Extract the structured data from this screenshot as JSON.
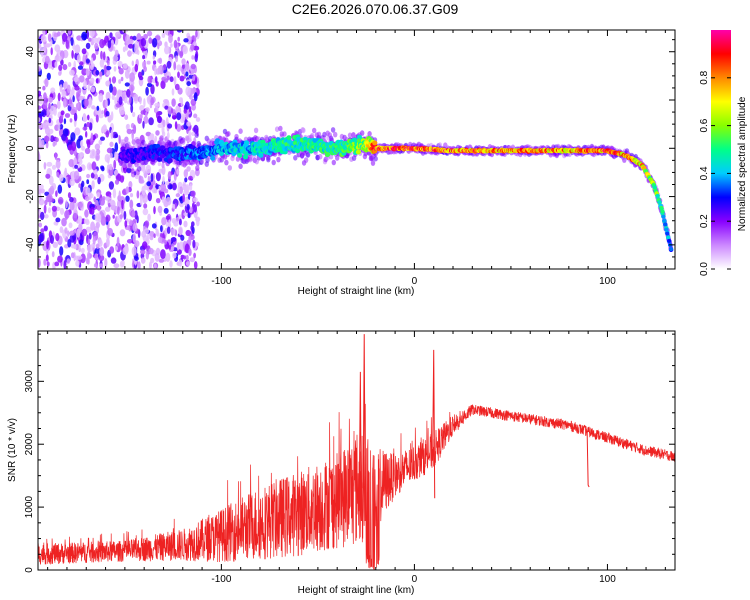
{
  "title": "C2E6.2026.070.06.37.G09",
  "chart_data": [
    {
      "type": "heatmap",
      "xlabel": "Height of straight line (km)",
      "ylabel": "Frequency (Hz)",
      "xlim": [
        -195,
        135
      ],
      "ylim": [
        -50,
        49
      ],
      "xticks": [
        -100,
        0,
        100
      ],
      "xtick_labels": [
        "-100",
        "0",
        "100"
      ],
      "yticks": [
        -40,
        -20,
        0,
        20,
        40
      ],
      "ytick_labels": [
        "-40",
        "-20",
        "0",
        "20",
        "40"
      ],
      "colorbar": {
        "label": "Normalized spectral amplitude",
        "range": [
          0,
          1
        ],
        "ticks": [
          0.0,
          0.2,
          0.4,
          0.6,
          0.8
        ],
        "tick_labels": [
          "0.0",
          "0.2",
          "0.4",
          "0.6",
          "0.8"
        ],
        "colors": [
          "#ffffff",
          "#cc88ff",
          "#8800ff",
          "#0000ff",
          "#00ccff",
          "#00ff88",
          "#88ff00",
          "#ffff00",
          "#ff8800",
          "#ff0000",
          "#ff00aa"
        ]
      },
      "noise_region": {
        "x_from": -195,
        "x_to": -112,
        "frequency_spread": 49
      },
      "ridge": [
        {
          "x": -152,
          "y": -3,
          "amp": 0.25
        },
        {
          "x": -130,
          "y": -2,
          "amp": 0.3
        },
        {
          "x": -112,
          "y": -2,
          "amp": 0.35
        },
        {
          "x": -100,
          "y": 0,
          "amp": 0.4
        },
        {
          "x": -80,
          "y": 0,
          "amp": 0.45
        },
        {
          "x": -60,
          "y": 2,
          "amp": 0.5
        },
        {
          "x": -40,
          "y": 0,
          "amp": 0.5
        },
        {
          "x": -25,
          "y": 2,
          "amp": 0.6
        },
        {
          "x": -20,
          "y": 0,
          "amp": 0.85
        },
        {
          "x": 0,
          "y": 0,
          "amp": 0.9
        },
        {
          "x": 20,
          "y": -1,
          "amp": 0.85
        },
        {
          "x": 50,
          "y": -1,
          "amp": 0.8
        },
        {
          "x": 80,
          "y": -1,
          "amp": 0.8
        },
        {
          "x": 100,
          "y": -1,
          "amp": 0.85
        },
        {
          "x": 110,
          "y": -3,
          "amp": 0.8
        },
        {
          "x": 118,
          "y": -7,
          "amp": 0.75
        },
        {
          "x": 124,
          "y": -15,
          "amp": 0.6
        },
        {
          "x": 128,
          "y": -25,
          "amp": 0.5
        },
        {
          "x": 131,
          "y": -35,
          "amp": 0.4
        },
        {
          "x": 133,
          "y": -42,
          "amp": 0.35
        }
      ]
    },
    {
      "type": "line",
      "xlabel": "Height of straight line (km)",
      "ylabel": "SNR (10 * v/v)",
      "xlim": [
        -195,
        135
      ],
      "ylim": [
        0,
        3800
      ],
      "xticks": [
        -100,
        0,
        100
      ],
      "xtick_labels": [
        "-100",
        "0",
        "100"
      ],
      "yticks": [
        0,
        1000,
        2000,
        3000
      ],
      "ytick_labels": [
        "0",
        "1000",
        "2000",
        "3000"
      ],
      "color": "#ee2222",
      "envelope": [
        {
          "x": -195,
          "y": 250,
          "spread": 200
        },
        {
          "x": -150,
          "y": 300,
          "spread": 200
        },
        {
          "x": -120,
          "y": 400,
          "spread": 300
        },
        {
          "x": -100,
          "y": 550,
          "spread": 500
        },
        {
          "x": -80,
          "y": 750,
          "spread": 700
        },
        {
          "x": -60,
          "y": 900,
          "spread": 800
        },
        {
          "x": -40,
          "y": 1100,
          "spread": 900
        },
        {
          "x": -30,
          "y": 1300,
          "spread": 1100
        },
        {
          "x": -20,
          "y": 1300,
          "spread": 800
        },
        {
          "x": -10,
          "y": 1500,
          "spread": 400
        },
        {
          "x": 0,
          "y": 1700,
          "spread": 350
        },
        {
          "x": 10,
          "y": 1900,
          "spread": 350
        },
        {
          "x": 20,
          "y": 2300,
          "spread": 200
        },
        {
          "x": 30,
          "y": 2550,
          "spread": 100
        },
        {
          "x": 50,
          "y": 2450,
          "spread": 100
        },
        {
          "x": 80,
          "y": 2300,
          "spread": 100
        },
        {
          "x": 100,
          "y": 2100,
          "spread": 100
        },
        {
          "x": 120,
          "y": 1900,
          "spread": 100
        },
        {
          "x": 135,
          "y": 1800,
          "spread": 100
        }
      ],
      "spikes": [
        {
          "x": -26,
          "y": 3750
        },
        {
          "x": -28,
          "y": 3150
        },
        {
          "x": 10,
          "y": 3500
        },
        {
          "x": 90,
          "y": 1350
        }
      ]
    }
  ]
}
